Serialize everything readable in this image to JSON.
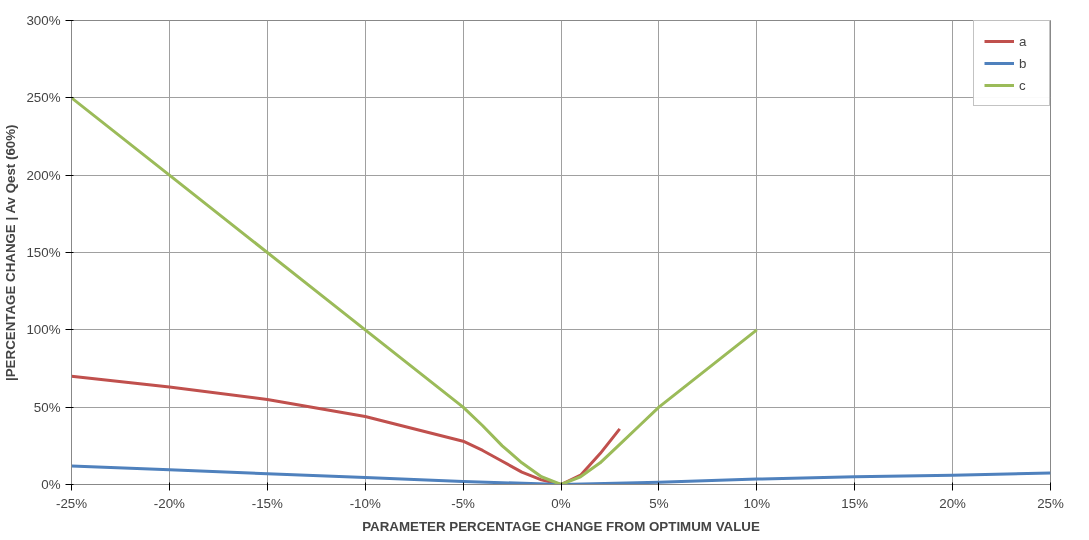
{
  "chart_data": {
    "type": "line",
    "xlabel": "PARAMETER PERCENTAGE CHANGE FROM OPTIMUM VALUE",
    "ylabel": "|PERCENTAGE CHANGE | Av Qest (60%)",
    "xlim": [
      -25,
      25
    ],
    "ylim": [
      0,
      300
    ],
    "xticks": [
      {
        "value": -25,
        "label": "-25%"
      },
      {
        "value": -20,
        "label": "-20%"
      },
      {
        "value": -15,
        "label": "-15%"
      },
      {
        "value": -10,
        "label": "-10%"
      },
      {
        "value": -5,
        "label": "-5%"
      },
      {
        "value": 0,
        "label": "0%"
      },
      {
        "value": 5,
        "label": "5%"
      },
      {
        "value": 10,
        "label": "10%"
      },
      {
        "value": 15,
        "label": "15%"
      },
      {
        "value": 20,
        "label": "20%"
      },
      {
        "value": 25,
        "label": "25%"
      }
    ],
    "yticks": [
      {
        "value": 0,
        "label": "0%"
      },
      {
        "value": 50,
        "label": "50%"
      },
      {
        "value": 100,
        "label": "100%"
      },
      {
        "value": 150,
        "label": "150%"
      },
      {
        "value": 200,
        "label": "200%"
      },
      {
        "value": 250,
        "label": "250%"
      },
      {
        "value": 300,
        "label": "300%"
      }
    ],
    "grid": true,
    "legend": "top right",
    "line_style": "solid",
    "marker": "none",
    "series": [
      {
        "name": "a",
        "color": "#c0504d",
        "x": [
          -25,
          -20,
          -15,
          -10,
          -5,
          -4,
          -3,
          -2,
          -1,
          0,
          1,
          2,
          3
        ],
        "values": [
          70,
          63,
          55,
          44,
          28,
          22,
          15,
          8,
          3,
          0,
          6,
          20,
          36
        ]
      },
      {
        "name": "b",
        "color": "#4f81bd",
        "x": [
          -25,
          -20,
          -15,
          -10,
          -5,
          0,
          5,
          10,
          15,
          20,
          25
        ],
        "values": [
          12,
          9.5,
          7,
          4.5,
          2,
          0,
          1.5,
          3.5,
          5,
          6,
          7.5
        ]
      },
      {
        "name": "c",
        "color": "#9bbb59",
        "x": [
          -25,
          -20,
          -15,
          -10,
          -5,
          -4,
          -3,
          -2,
          -1,
          0,
          1,
          2,
          3,
          4,
          5,
          10
        ],
        "values": [
          250,
          200,
          150,
          100,
          50,
          38,
          25,
          14,
          5,
          0,
          5,
          14,
          26,
          38,
          50,
          100
        ]
      }
    ]
  }
}
